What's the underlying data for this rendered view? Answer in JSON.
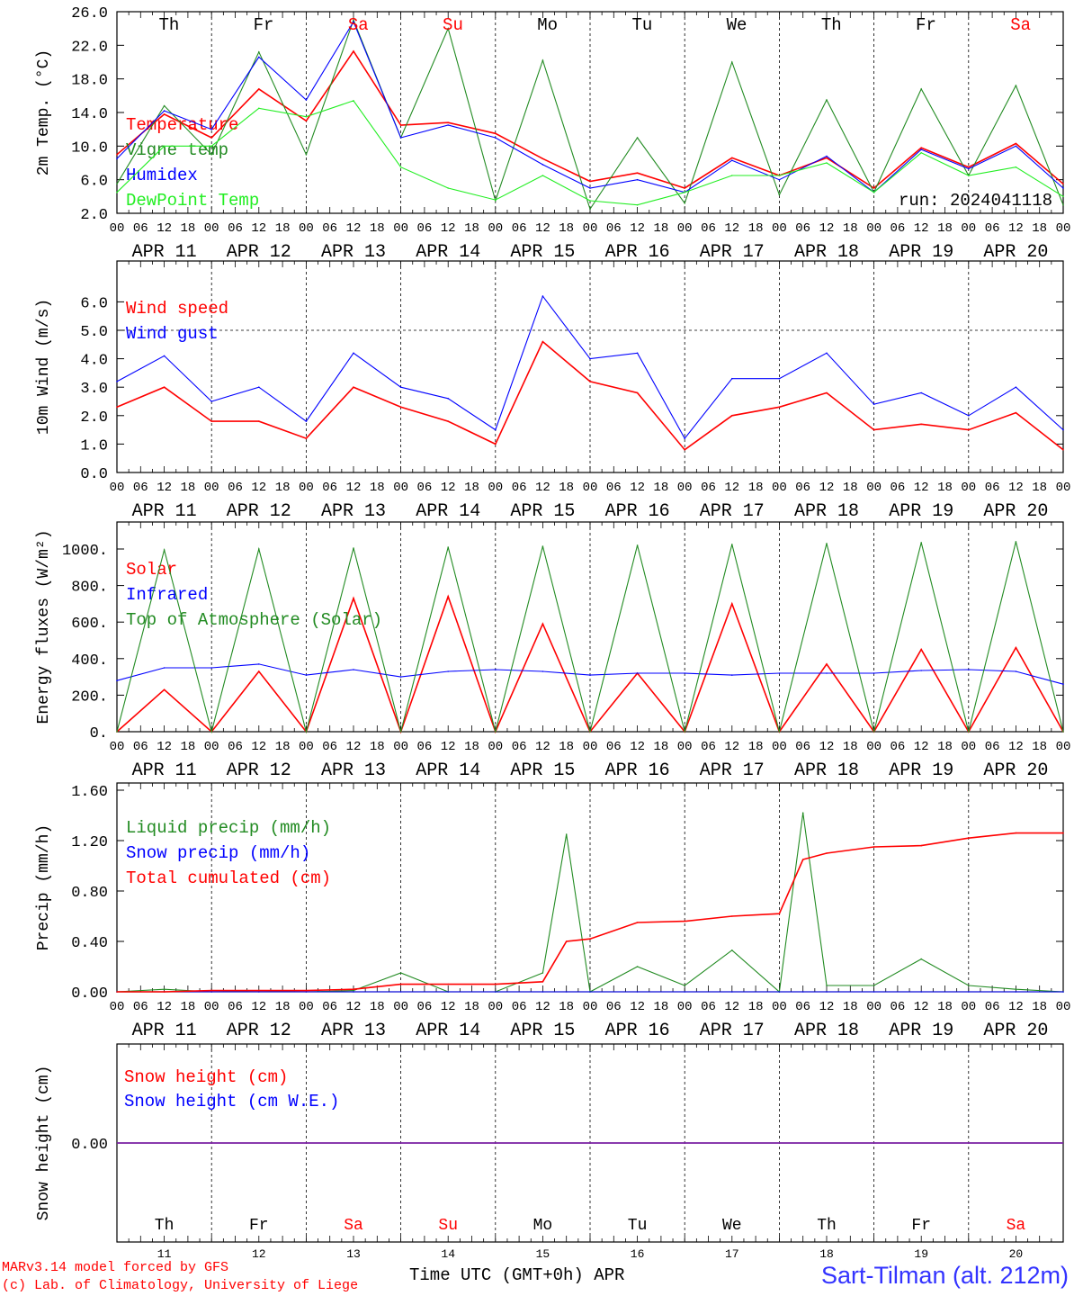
{
  "footer": {
    "credit_line1": "MARv3.14 model forced by GFS",
    "credit_line2": "(c) Lab. of Climatology, University of Liege",
    "time_label": "Time UTC (GMT+0h) APR",
    "station": "Sart-Tilman (alt. 212m)",
    "day_numbers": [
      "11",
      "12",
      "13",
      "14",
      "15",
      "16",
      "17",
      "18",
      "19",
      "20"
    ]
  },
  "days": {
    "weekday_labels": [
      "Th",
      "Fr",
      "Sa",
      "Su",
      "Mo",
      "Tu",
      "We",
      "Th",
      "Fr",
      "Sa"
    ],
    "weekend_flags": [
      false,
      false,
      true,
      true,
      false,
      false,
      false,
      false,
      false,
      true
    ],
    "date_labels": [
      "APR 11",
      "APR 12",
      "APR 13",
      "APR 14",
      "APR 15",
      "APR 16",
      "APR 17",
      "APR 18",
      "APR 19",
      "APR 20"
    ],
    "hour_labels": [
      "00",
      "06",
      "12",
      "18"
    ],
    "final_hour_label": "00"
  },
  "colors": {
    "red": "#ff0000",
    "green": "#228b22",
    "blue": "#0000ff",
    "lightgreen": "#22ee22",
    "weekend": "#ff0000",
    "purple": "#7a1fa2"
  },
  "chart_data": [
    {
      "type": "line",
      "ylabel": "2m Temp. (°C)",
      "ylim": [
        2,
        26
      ],
      "yticks": [
        "2.0",
        "6.0",
        "10.0",
        "14.0",
        "18.0",
        "22.0",
        "26.0"
      ],
      "annotation": "run: 2024041118",
      "x": [
        "Apr 11 00h",
        "Apr 11 12h",
        "Apr 12 00h",
        "Apr 12 12h",
        "Apr 13 00h",
        "Apr 13 12h",
        "Apr 14 00h",
        "Apr 14 12h",
        "Apr 15 00h",
        "Apr 15 12h",
        "Apr 16 00h",
        "Apr 16 12h",
        "Apr 17 00h",
        "Apr 17 12h",
        "Apr 18 00h",
        "Apr 18 12h",
        "Apr 19 00h",
        "Apr 19 12h",
        "Apr 20 00h",
        "Apr 20 12h",
        "Apr 21 00h"
      ],
      "series": [
        {
          "name": "Temperature",
          "color": "red",
          "values": [
            9.0,
            13.8,
            11.0,
            16.8,
            13.0,
            21.3,
            12.5,
            12.8,
            11.5,
            8.5,
            5.8,
            6.8,
            5.0,
            8.6,
            6.5,
            8.6,
            5.0,
            9.8,
            7.5,
            10.3,
            5.5
          ]
        },
        {
          "name": "Vigne temp",
          "color": "green",
          "values": [
            5.5,
            14.8,
            9.0,
            21.2,
            9.0,
            25.0,
            11.0,
            24.0,
            3.5,
            20.2,
            2.5,
            11.0,
            3.2,
            20.0,
            4.2,
            15.5,
            4.5,
            16.8,
            6.5,
            17.2,
            3.0
          ]
        },
        {
          "name": "Humidex",
          "color": "blue",
          "values": [
            8.5,
            14.2,
            12.0,
            20.6,
            15.5,
            24.8,
            11.0,
            12.5,
            11.0,
            7.8,
            5.0,
            6.0,
            4.5,
            8.3,
            6.0,
            8.8,
            4.5,
            9.6,
            7.3,
            10.0,
            5.0
          ]
        },
        {
          "name": "DewPoint Temp",
          "color": "lightgreen",
          "values": [
            4.5,
            10.0,
            10.0,
            14.5,
            13.5,
            15.4,
            7.5,
            5.0,
            3.6,
            6.5,
            3.5,
            3.0,
            4.5,
            6.5,
            6.5,
            8.0,
            4.5,
            9.2,
            6.5,
            7.5,
            4.0
          ]
        }
      ]
    },
    {
      "type": "line",
      "ylabel": "10m Wind (m/s)",
      "ylim": [
        0,
        6.5
      ],
      "yticks": [
        "0.0",
        "1.0",
        "2.0",
        "3.0",
        "4.0",
        "5.0",
        "6.0"
      ],
      "reference_line": 5.0,
      "x": [
        "Apr 11 00h",
        "Apr 11 12h",
        "Apr 12 00h",
        "Apr 12 12h",
        "Apr 13 00h",
        "Apr 13 12h",
        "Apr 14 00h",
        "Apr 14 12h",
        "Apr 15 00h",
        "Apr 15 12h",
        "Apr 16 00h",
        "Apr 16 12h",
        "Apr 17 00h",
        "Apr 17 12h",
        "Apr 18 00h",
        "Apr 18 12h",
        "Apr 19 00h",
        "Apr 19 12h",
        "Apr 20 00h",
        "Apr 20 12h",
        "Apr 21 00h"
      ],
      "series": [
        {
          "name": "Wind speed",
          "color": "red",
          "values": [
            2.3,
            3.0,
            1.8,
            1.8,
            1.2,
            3.0,
            2.3,
            1.8,
            1.0,
            4.6,
            3.2,
            2.8,
            0.8,
            2.0,
            2.3,
            2.8,
            1.5,
            1.7,
            1.5,
            2.1,
            0.8
          ]
        },
        {
          "name": "Wind gust",
          "color": "blue",
          "values": [
            3.2,
            4.1,
            2.5,
            3.0,
            1.8,
            4.2,
            3.0,
            2.6,
            1.5,
            6.2,
            4.0,
            4.2,
            1.2,
            3.3,
            3.3,
            4.2,
            2.4,
            2.8,
            2.0,
            3.0,
            1.5
          ]
        }
      ]
    },
    {
      "type": "line",
      "ylabel": "Energy fluxes (W/m²)",
      "ylim": [
        0,
        1100
      ],
      "yticks": [
        "0.",
        "200.",
        "400.",
        "600.",
        "800.",
        "1000."
      ],
      "x": [
        "Apr 11 00h",
        "Apr 11 12h",
        "Apr 12 00h",
        "Apr 12 12h",
        "Apr 13 00h",
        "Apr 13 12h",
        "Apr 14 00h",
        "Apr 14 12h",
        "Apr 15 00h",
        "Apr 15 12h",
        "Apr 16 00h",
        "Apr 16 12h",
        "Apr 17 00h",
        "Apr 17 12h",
        "Apr 18 00h",
        "Apr 18 12h",
        "Apr 19 00h",
        "Apr 19 12h",
        "Apr 20 00h",
        "Apr 20 12h",
        "Apr 21 00h"
      ],
      "series": [
        {
          "name": "Solar",
          "color": "red",
          "values": [
            0,
            230,
            0,
            330,
            0,
            730,
            0,
            740,
            0,
            590,
            0,
            320,
            0,
            700,
            0,
            370,
            0,
            450,
            0,
            460,
            0
          ]
        },
        {
          "name": "Infrared",
          "color": "blue",
          "values": [
            280,
            350,
            350,
            370,
            310,
            340,
            300,
            330,
            340,
            330,
            310,
            320,
            320,
            310,
            320,
            320,
            320,
            335,
            340,
            330,
            260
          ]
        },
        {
          "name": "Top of Atmosphere (Solar)",
          "color": "green",
          "values": [
            0,
            995,
            0,
            1000,
            0,
            1005,
            0,
            1010,
            0,
            1015,
            0,
            1020,
            0,
            1025,
            0,
            1030,
            0,
            1035,
            0,
            1040,
            0
          ]
        }
      ]
    },
    {
      "type": "line",
      "ylabel": "Precip (mm/h)",
      "ylim": [
        0,
        1.6
      ],
      "yticks": [
        "0.00",
        "0.40",
        "0.80",
        "1.20",
        "1.60"
      ],
      "x": [
        "Apr 11 00h",
        "Apr 11 12h",
        "Apr 12 00h",
        "Apr 12 12h",
        "Apr 13 00h",
        "Apr 13 12h",
        "Apr 14 00h",
        "Apr 14 12h",
        "Apr 15 00h",
        "Apr 15 12h",
        "Apr 15 18h",
        "Apr 16 00h",
        "Apr 16 12h",
        "Apr 17 00h",
        "Apr 17 12h",
        "Apr 18 00h",
        "Apr 18 06h",
        "Apr 18 12h",
        "Apr 19 00h",
        "Apr 19 12h",
        "Apr 20 00h",
        "Apr 20 12h",
        "Apr 21 00h"
      ],
      "series": [
        {
          "name": "Liquid precip (mm/h)",
          "color": "green",
          "values": [
            0,
            0.02,
            0,
            0.01,
            0,
            0.01,
            0.15,
            0,
            0,
            0.15,
            1.25,
            0,
            0.2,
            0.05,
            0.33,
            0,
            1.42,
            0.05,
            0.05,
            0.26,
            0.05,
            0.02,
            0
          ]
        },
        {
          "name": "Snow precip (mm/h)",
          "color": "blue",
          "values": [
            0,
            0,
            0,
            0,
            0,
            0,
            0,
            0,
            0,
            0,
            0,
            0,
            0,
            0,
            0,
            0,
            0,
            0,
            0,
            0,
            0,
            0,
            0
          ]
        },
        {
          "name": "Total cumulated (cm)",
          "color": "red",
          "values": [
            0,
            0,
            0.01,
            0.01,
            0.01,
            0.02,
            0.06,
            0.06,
            0.06,
            0.08,
            0.4,
            0.42,
            0.55,
            0.56,
            0.6,
            0.62,
            1.05,
            1.1,
            1.15,
            1.16,
            1.22,
            1.26,
            1.26
          ]
        }
      ]
    },
    {
      "type": "line",
      "ylabel": "Snow height (cm)",
      "yticks": [
        "0.00"
      ],
      "x": [
        "Apr 11 00h",
        "Apr 21 00h"
      ],
      "series": [
        {
          "name": "Snow height (cm)",
          "color": "red",
          "values": [
            0,
            0
          ]
        },
        {
          "name": "Snow height (cm W.E.)",
          "color": "blue",
          "values": [
            0,
            0
          ]
        }
      ]
    }
  ]
}
